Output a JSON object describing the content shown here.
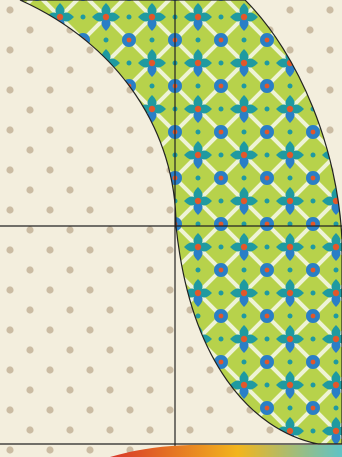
{
  "image": {
    "subject": "quilt-block-photo",
    "elements": [
      "polka-dot-background",
      "ikat-print-curved-panel",
      "seam-lines",
      "bottom-fabric-strip"
    ]
  },
  "palette": {
    "background_cream": "#f3eedd",
    "dot_tan": "#cbbca3",
    "fabric_green": "#b7d24b",
    "fabric_teal": "#1f9aa0",
    "fabric_blue": "#2a7fc6",
    "fabric_orange": "#e2572b",
    "fabric_white_streak": "#f4f6e6",
    "seam_line": "#222222",
    "bottom_red": "#d8372a",
    "bottom_yellow": "#f2b51d",
    "bottom_aqua": "#5fc3c6"
  }
}
